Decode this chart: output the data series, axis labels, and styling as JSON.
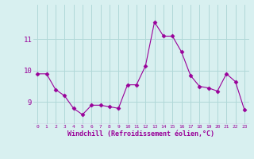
{
  "x": [
    0,
    1,
    2,
    3,
    4,
    5,
    6,
    7,
    8,
    9,
    10,
    11,
    12,
    13,
    14,
    15,
    16,
    17,
    18,
    19,
    20,
    21,
    22,
    23
  ],
  "y": [
    9.9,
    9.9,
    9.4,
    9.2,
    8.8,
    8.6,
    8.9,
    8.9,
    8.85,
    8.8,
    9.55,
    9.55,
    10.15,
    11.55,
    11.1,
    11.1,
    10.6,
    9.85,
    9.5,
    9.45,
    9.35,
    9.9,
    9.65,
    8.75
  ],
  "line_color": "#990099",
  "marker": "D",
  "marker_size": 2.5,
  "bg_color": "#d8f0f0",
  "grid_color": "#b0d8d8",
  "xlabel": "Windchill (Refroidissement éolien,°C)",
  "xlabel_color": "#990099",
  "tick_color": "#990099",
  "yticks": [
    9,
    10,
    11
  ],
  "ylim": [
    8.3,
    12.1
  ],
  "xlim": [
    -0.5,
    23.5
  ],
  "xtick_labels": [
    "0",
    "1",
    "2",
    "3",
    "4",
    "5",
    "6",
    "7",
    "8",
    "9",
    "10",
    "11",
    "12",
    "13",
    "14",
    "15",
    "16",
    "17",
    "18",
    "19",
    "20",
    "21",
    "22",
    "23"
  ]
}
